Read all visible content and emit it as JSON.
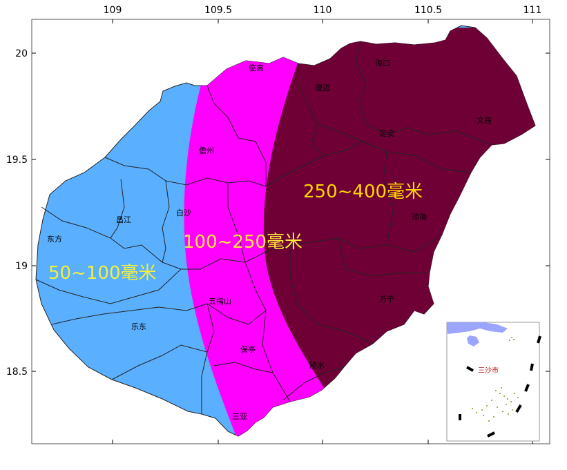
{
  "axes": {
    "x_ticks": [
      "109",
      "109.5",
      "110",
      "110.5",
      "111"
    ],
    "y_ticks": [
      "20",
      "19.5",
      "19",
      "18.5"
    ]
  },
  "zones": [
    {
      "label": "50~100毫米",
      "fill": "#5aafff",
      "text_color": "#f2f03a"
    },
    {
      "label": "100~250毫米",
      "fill": "#ff00ff",
      "text_color": "#ffe83a"
    },
    {
      "label": "250~400毫米",
      "fill": "#6e0036",
      "text_color": "#ffd700"
    }
  ],
  "counties": {
    "lingao": "临高",
    "haikou": "海口",
    "chengmai": "澄迈",
    "wenchang": "文昌",
    "dingan": "定安",
    "danzhou": "儋州",
    "baisha": "白沙",
    "changjiang": "昌江",
    "dongfang": "东方",
    "qionghai": "琼海",
    "wuzhishan": "五指山",
    "wanning": "万宁",
    "ledong": "乐东",
    "baoting": "保亭",
    "lingshui": "陵水",
    "sanya": "三亚"
  },
  "inset": {
    "label": "三沙市",
    "label_color": "#b22222",
    "land_color": "#9aa6ff",
    "islands_color": "#7a9a1a"
  }
}
